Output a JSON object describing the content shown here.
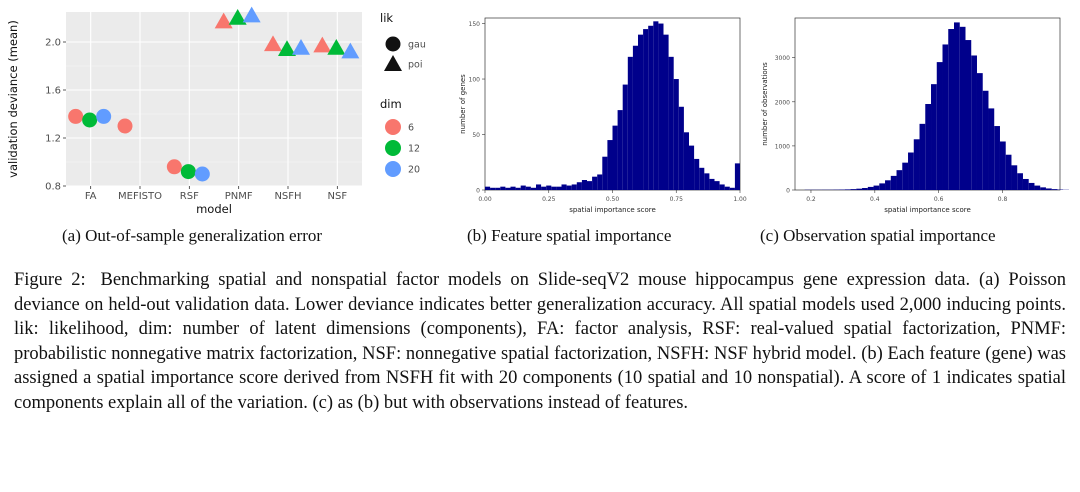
{
  "panels": {
    "a": {
      "caption": "(a) Out-of-sample generalization error",
      "chart_data": {
        "type": "scatter",
        "xlabel": "model",
        "ylabel": "validation deviance (mean)",
        "categories": [
          "FA",
          "MEFISTO",
          "RSF",
          "PNMF",
          "NSFH",
          "NSF"
        ],
        "ylim": [
          0.8,
          2.25
        ],
        "yticks": [
          "0.8",
          "1.2",
          "1.6",
          "2.0"
        ],
        "grid": true,
        "legend_lik_title": "lik",
        "legend_lik": [
          {
            "label": "gau",
            "shape": "circle"
          },
          {
            "label": "poi",
            "shape": "triangle"
          }
        ],
        "legend_dim_title": "dim",
        "legend_dim": [
          {
            "label": "6",
            "color": "#F8766D"
          },
          {
            "label": "12",
            "color": "#00BA38"
          },
          {
            "label": "20",
            "color": "#619CFF"
          }
        ],
        "points": [
          {
            "model": "FA",
            "dim": "6",
            "lik": "gau",
            "y": 1.38
          },
          {
            "model": "FA",
            "dim": "12",
            "lik": "gau",
            "y": 1.35
          },
          {
            "model": "FA",
            "dim": "20",
            "lik": "gau",
            "y": 1.38
          },
          {
            "model": "MEFISTO",
            "dim": "6",
            "lik": "gau",
            "y": 1.3
          },
          {
            "model": "RSF",
            "dim": "6",
            "lik": "gau",
            "y": 0.96
          },
          {
            "model": "RSF",
            "dim": "12",
            "lik": "gau",
            "y": 0.92
          },
          {
            "model": "RSF",
            "dim": "20",
            "lik": "gau",
            "y": 0.9
          },
          {
            "model": "PNMF",
            "dim": "6",
            "lik": "poi",
            "y": 2.17
          },
          {
            "model": "PNMF",
            "dim": "12",
            "lik": "poi",
            "y": 2.2
          },
          {
            "model": "PNMF",
            "dim": "20",
            "lik": "poi",
            "y": 2.22
          },
          {
            "model": "NSFH",
            "dim": "6",
            "lik": "poi",
            "y": 1.98
          },
          {
            "model": "NSFH",
            "dim": "12",
            "lik": "poi",
            "y": 1.94
          },
          {
            "model": "NSFH",
            "dim": "20",
            "lik": "poi",
            "y": 1.95
          },
          {
            "model": "NSF",
            "dim": "6",
            "lik": "poi",
            "y": 1.97
          },
          {
            "model": "NSF",
            "dim": "12",
            "lik": "poi",
            "y": 1.95
          },
          {
            "model": "NSF",
            "dim": "20",
            "lik": "poi",
            "y": 1.92
          }
        ]
      }
    },
    "b": {
      "caption": "(b) Feature spatial importance",
      "chart_data": {
        "type": "bar",
        "xlabel": "spatial importance score",
        "ylabel": "number of genes",
        "xlim": [
          0.0,
          1.0
        ],
        "xticks": [
          "0.00",
          "0.25",
          "0.50",
          "0.75",
          "1.00"
        ],
        "ylim": [
          0,
          155
        ],
        "yticks": [
          "0",
          "50",
          "100",
          "150"
        ],
        "bar_color": "#00008B",
        "bin_start": 0.0,
        "bin_width": 0.02,
        "values": [
          3,
          2,
          2,
          3,
          2,
          3,
          2,
          4,
          3,
          2,
          5,
          3,
          4,
          3,
          3,
          5,
          4,
          5,
          7,
          9,
          8,
          12,
          14,
          30,
          45,
          58,
          72,
          95,
          120,
          130,
          140,
          145,
          148,
          152,
          150,
          140,
          120,
          100,
          75,
          52,
          40,
          28,
          20,
          15,
          10,
          8,
          5,
          3,
          2,
          24
        ]
      }
    },
    "c": {
      "caption": "(c) Observation spatial importance",
      "chart_data": {
        "type": "bar",
        "xlabel": "spatial importance score",
        "ylabel": "number of observations",
        "xlim": [
          0.15,
          0.98
        ],
        "xticks": [
          "0.2",
          "0.4",
          "0.6",
          "0.8"
        ],
        "ylim": [
          0,
          3900
        ],
        "yticks": [
          "0",
          "1000",
          "2000",
          "3000"
        ],
        "bar_color": "#00008B",
        "bin_start": 0.18,
        "bin_width": 0.018,
        "values": [
          5,
          5,
          5,
          6,
          6,
          8,
          10,
          14,
          20,
          30,
          45,
          70,
          100,
          150,
          220,
          320,
          450,
          620,
          850,
          1150,
          1500,
          1950,
          2400,
          2900,
          3300,
          3650,
          3800,
          3700,
          3400,
          3050,
          2650,
          2250,
          1850,
          1450,
          1100,
          800,
          560,
          380,
          250,
          160,
          100,
          60,
          35,
          20,
          10,
          5
        ]
      }
    }
  },
  "figure_caption": {
    "label": "Figure 2:",
    "text": "Benchmarking spatial and nonspatial factor models on Slide-seqV2 mouse hippocampus gene expression data. (a) Poisson deviance on held-out validation data. Lower deviance indicates better generalization accuracy. All spatial models used 2,000 inducing points. lik: likelihood, dim: number of latent dimensions (components), FA: factor analysis, RSF: real-valued spatial factorization, PNMF: probabilistic nonnegative matrix factorization, NSF: nonnegative spatial factorization, NSFH: NSF hybrid model. (b) Each feature (gene) was assigned a spatial importance score derived from NSFH fit with 20 components (10 spatial and 10 nonspatial). A score of 1 indicates spatial components explain all of the variation. (c) as (b) but with observations instead of features."
  }
}
